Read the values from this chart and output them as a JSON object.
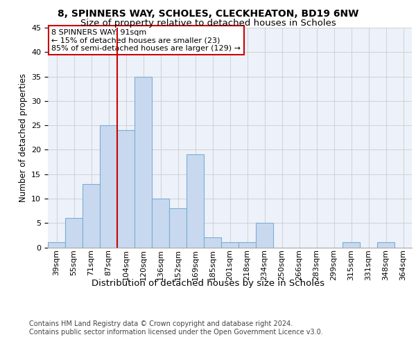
{
  "title1": "8, SPINNERS WAY, SCHOLES, CLECKHEATON, BD19 6NW",
  "title2": "Size of property relative to detached houses in Scholes",
  "xlabel": "Distribution of detached houses by size in Scholes",
  "ylabel": "Number of detached properties",
  "categories": [
    "39sqm",
    "55sqm",
    "71sqm",
    "87sqm",
    "104sqm",
    "120sqm",
    "136sqm",
    "152sqm",
    "169sqm",
    "185sqm",
    "201sqm",
    "218sqm",
    "234sqm",
    "250sqm",
    "266sqm",
    "283sqm",
    "299sqm",
    "315sqm",
    "331sqm",
    "348sqm",
    "364sqm"
  ],
  "values": [
    1,
    6,
    13,
    25,
    24,
    35,
    10,
    8,
    19,
    2,
    1,
    1,
    5,
    0,
    0,
    0,
    0,
    1,
    0,
    1,
    0
  ],
  "bar_color": "#c8d9ef",
  "bar_edge_color": "#7aadd4",
  "vline_x_index": 3,
  "vline_color": "#cc0000",
  "annotation_text": "8 SPINNERS WAY: 91sqm\n← 15% of detached houses are smaller (23)\n85% of semi-detached houses are larger (129) →",
  "annotation_box_color": "#ffffff",
  "annotation_box_edge": "#cc0000",
  "ylim": [
    0,
    45
  ],
  "yticks": [
    0,
    5,
    10,
    15,
    20,
    25,
    30,
    35,
    40,
    45
  ],
  "grid_color": "#cccccc",
  "background_color": "#edf1f9",
  "footer_text": "Contains HM Land Registry data © Crown copyright and database right 2024.\nContains public sector information licensed under the Open Government Licence v3.0.",
  "title1_fontsize": 10,
  "title2_fontsize": 9.5,
  "xlabel_fontsize": 9.5,
  "ylabel_fontsize": 8.5,
  "tick_fontsize": 8,
  "annotation_fontsize": 8,
  "footer_fontsize": 7
}
